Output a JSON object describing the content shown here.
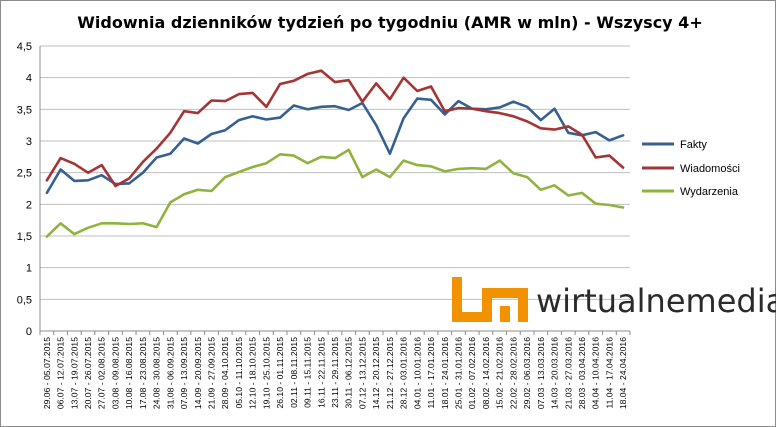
{
  "chart_data": {
    "type": "line",
    "title": "Widownia dzienników tydzień po tygodniu (AMR w mln) - Wszyscy 4+",
    "ylim": [
      0,
      4.5
    ],
    "ytick_labels": [
      "0",
      "0,5",
      "1",
      "1,5",
      "2",
      "2,5",
      "3",
      "3,5",
      "4",
      "4,5"
    ],
    "grid": "horizontal",
    "legend_position": "right",
    "categories": [
      "29.06 - 05.07.2015",
      "06.07 - 12.07.2015",
      "13.07 - 19.07.2015",
      "20.07 - 26.07.2015",
      "27.07 - 02.08.2015",
      "03.08 - 09.08.2015",
      "10.08 - 16.08.2015",
      "17.08 - 23.08.2015",
      "24.08 - 30.08.2015",
      "31.08 - 06.09.2015",
      "07.09 - 13.09.2015",
      "14.09 - 20.09.2015",
      "21.09 - 27.09.2015",
      "28.09 - 04.10.2015",
      "05.10 - 11.10.2015",
      "12.10 - 18.10.2015",
      "19.10 - 25.10.2015",
      "26.10 - 01.11.2015",
      "02.11 - 08.11.2015",
      "09.11 - 15.11.2015",
      "16.11 - 22.11.2015",
      "23.11 - 29.11.2015",
      "30.11 - 06.12.2015",
      "07.12 - 13.12.2015",
      "14.12 - 20.12.2015",
      "21.12 - 27.12.2015",
      "28.12 - 03.01.2016",
      "04.01 - 10.01.2016",
      "11.01 - 17.01.2016",
      "18.01 - 24.01.2016",
      "25.01 - 31.01.2016",
      "01.02 - 07.02.2016",
      "08.02 - 14.02.2016",
      "15.02 - 21.02.2016",
      "22.02 - 28.02.2016",
      "29.02 - 06.03.2016",
      "07.03 - 13.03.2016",
      "14.03 - 20.03.2016",
      "21.03 - 27.03.2016",
      "28.03 - 03.04.2016",
      "04.04 - 10.04.2016",
      "11.04 - 17.04.2016",
      "18.04 - 24.04.2016"
    ],
    "series": [
      {
        "name": "Fakty",
        "color": "#376092",
        "values": [
          2.18,
          2.55,
          2.37,
          2.38,
          2.46,
          2.32,
          2.33,
          2.5,
          2.74,
          2.8,
          3.04,
          2.96,
          3.11,
          3.17,
          3.33,
          3.39,
          3.34,
          3.37,
          3.56,
          3.5,
          3.54,
          3.55,
          3.49,
          3.6,
          3.25,
          2.8,
          3.36,
          3.67,
          3.65,
          3.42,
          3.63,
          3.51,
          3.5,
          3.53,
          3.62,
          3.54,
          3.33,
          3.51,
          3.13,
          3.09,
          3.14,
          3.01,
          3.09
        ]
      },
      {
        "name": "Wiadomości",
        "color": "#a33634",
        "values": [
          2.38,
          2.73,
          2.64,
          2.5,
          2.62,
          2.29,
          2.41,
          2.67,
          2.88,
          3.13,
          3.47,
          3.44,
          3.64,
          3.63,
          3.74,
          3.76,
          3.54,
          3.9,
          3.95,
          4.06,
          4.11,
          3.93,
          3.96,
          3.62,
          3.91,
          3.66,
          4.0,
          3.79,
          3.86,
          3.47,
          3.52,
          3.51,
          3.47,
          3.44,
          3.39,
          3.31,
          3.2,
          3.18,
          3.23,
          3.1,
          2.74,
          2.77,
          2.58
        ]
      },
      {
        "name": "Wydarzenia",
        "color": "#8eb43f",
        "values": [
          1.49,
          1.7,
          1.53,
          1.63,
          1.7,
          1.7,
          1.69,
          1.7,
          1.64,
          2.03,
          2.16,
          2.23,
          2.21,
          2.43,
          2.51,
          2.59,
          2.65,
          2.79,
          2.77,
          2.65,
          2.75,
          2.73,
          2.86,
          2.43,
          2.55,
          2.43,
          2.69,
          2.62,
          2.6,
          2.52,
          2.56,
          2.57,
          2.56,
          2.69,
          2.49,
          2.43,
          2.23,
          2.3,
          2.14,
          2.18,
          2.01,
          1.99,
          1.95
        ]
      }
    ]
  },
  "logo": {
    "text": "wirtualnemedia.pl",
    "mark_color": "#f39200"
  }
}
